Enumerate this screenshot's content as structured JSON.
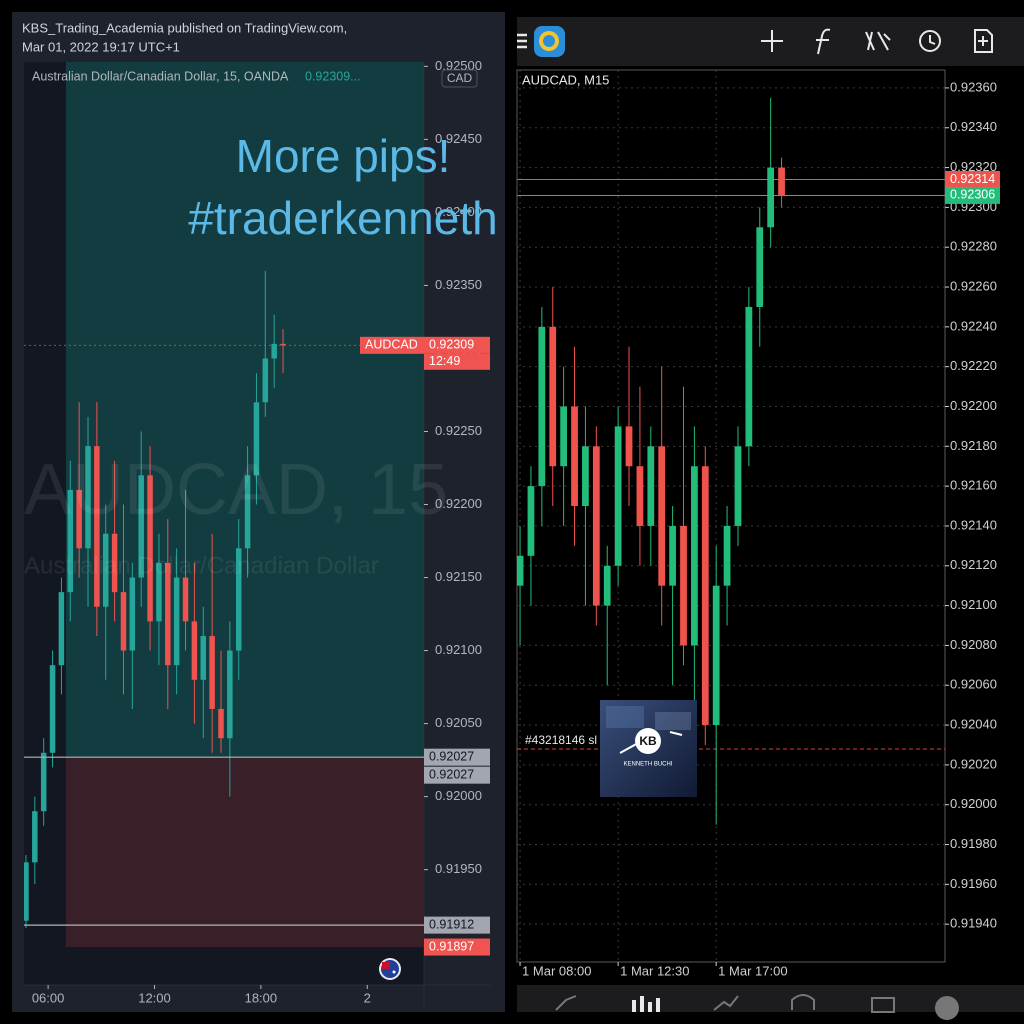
{
  "header": {
    "publisher": "KBS_Trading_Academia published on TradingView.com,",
    "date": "Mar 01, 2022 19:17 UTC+1"
  },
  "overlay": {
    "line1": "More pips!",
    "line2": "#traderkenneth"
  },
  "logo": {
    "initials": "KB",
    "name": "KENNETH BUCHI"
  },
  "chart_data": [
    {
      "type": "candlestick",
      "legend": {
        "symbol": "Australian Dollar/Canadian Dollar, 15, OANDA",
        "price": "0.92309..."
      },
      "currency": "CAD",
      "watermark": {
        "title": "AUDCAD, 15",
        "subtitle": "Australian Dollar/Canadian Dollar"
      },
      "up_color": "#26a69a",
      "down_color": "#ef5350",
      "x": [
        4.75,
        5.25,
        5.75,
        6.25,
        6.75,
        7.25,
        7.75,
        8.25,
        8.75,
        9.25,
        9.75,
        10.25,
        10.75,
        11.25,
        11.75,
        12.25,
        12.75,
        13.25,
        13.75,
        14.25,
        14.75,
        15.25,
        15.75,
        16.25,
        16.75,
        17.25,
        17.75,
        18.25,
        18.75,
        19.25
      ],
      "open": [
        0.91915,
        0.91955,
        0.9199,
        0.9203,
        0.9209,
        0.9214,
        0.9221,
        0.9217,
        0.9224,
        0.9213,
        0.9218,
        0.9214,
        0.921,
        0.9215,
        0.9222,
        0.9212,
        0.9216,
        0.9209,
        0.9215,
        0.9212,
        0.9208,
        0.9211,
        0.9206,
        0.9204,
        0.921,
        0.9217,
        0.9222,
        0.9227,
        0.923,
        0.9231
      ],
      "high": [
        0.9196,
        0.92,
        0.9204,
        0.921,
        0.9215,
        0.9223,
        0.9227,
        0.9226,
        0.9227,
        0.922,
        0.9223,
        0.922,
        0.9216,
        0.9225,
        0.9224,
        0.9218,
        0.9219,
        0.9217,
        0.9221,
        0.9216,
        0.9213,
        0.9218,
        0.921,
        0.9212,
        0.9219,
        0.9224,
        0.9229,
        0.9236,
        0.9233,
        0.9232
      ],
      "low": [
        0.9191,
        0.9194,
        0.9198,
        0.9202,
        0.9207,
        0.9212,
        0.9215,
        0.9213,
        0.9211,
        0.9208,
        0.9212,
        0.9207,
        0.9206,
        0.9213,
        0.921,
        0.9209,
        0.9206,
        0.9207,
        0.921,
        0.9205,
        0.9204,
        0.9203,
        0.9203,
        0.92,
        0.9208,
        0.9215,
        0.922,
        0.9226,
        0.9228,
        0.9229
      ],
      "close": [
        0.91955,
        0.9199,
        0.9203,
        0.9209,
        0.9214,
        0.9221,
        0.9217,
        0.9224,
        0.9213,
        0.9218,
        0.9214,
        0.921,
        0.9215,
        0.9222,
        0.9212,
        0.9216,
        0.9209,
        0.9215,
        0.9212,
        0.9208,
        0.9211,
        0.9206,
        0.9204,
        0.921,
        0.9217,
        0.9222,
        0.9227,
        0.923,
        0.9231,
        0.92309
      ],
      "xlim": [
        4.64,
        27.2
      ],
      "ylim": [
        0.91871,
        0.92503
      ],
      "xticks": [
        {
          "value": 6,
          "label": "06:00"
        },
        {
          "value": 12,
          "label": "12:00"
        },
        {
          "value": 18,
          "label": "18:00"
        },
        {
          "value": 24,
          "label": "2"
        }
      ],
      "yticks": [
        {
          "value": 0.9195,
          "label": "0.91950"
        },
        {
          "value": 0.92,
          "label": "0.92000"
        },
        {
          "value": 0.9205,
          "label": "0.92050"
        },
        {
          "value": 0.921,
          "label": "0.92100"
        },
        {
          "value": 0.9215,
          "label": "0.92150"
        },
        {
          "value": 0.922,
          "label": "0.92200"
        },
        {
          "value": 0.9225,
          "label": "0.92250"
        },
        {
          "value": 0.923,
          "label": "0.92300"
        },
        {
          "value": 0.9235,
          "label": "0.92350"
        },
        {
          "value": 0.924,
          "label": "0.92400"
        },
        {
          "value": 0.9245,
          "label": "0.92450"
        },
        {
          "value": 0.925,
          "label": "0.92500"
        }
      ],
      "grid": false,
      "last": {
        "symbol": "AUDCAD",
        "value": 0.92309,
        "countdown": "12:49",
        "color": "#f05350"
      },
      "position": {
        "start": 7.0,
        "entry": 0.92027,
        "target": 0.9252,
        "stop": 0.91897,
        "profit_color": "#134a4a",
        "loss_color": "#3f2129",
        "stop_color": "#f05350"
      },
      "hlines": [
        0.92027,
        0.91912
      ]
    },
    {
      "type": "candlestick",
      "symbol_label": "AUDCAD, M15",
      "up_color": "#22bd7a",
      "down_color": "#f0534c",
      "x": [
        8,
        8.5,
        9,
        9.5,
        10,
        10.5,
        11,
        11.5,
        12,
        12.5,
        13,
        13.5,
        14,
        14.5,
        15,
        15.5,
        16,
        16.5,
        17,
        17.5,
        18,
        18.5,
        19,
        19.5,
        20
      ],
      "open": [
        0.9211,
        0.92125,
        0.9216,
        0.9224,
        0.9217,
        0.922,
        0.9215,
        0.9218,
        0.921,
        0.9212,
        0.9219,
        0.9217,
        0.9214,
        0.9218,
        0.9211,
        0.9214,
        0.9208,
        0.9217,
        0.9204,
        0.9211,
        0.9214,
        0.9218,
        0.9225,
        0.9229,
        0.9232
      ],
      "high": [
        0.9214,
        0.9217,
        0.9225,
        0.9226,
        0.9222,
        0.9223,
        0.922,
        0.9219,
        0.9213,
        0.922,
        0.9223,
        0.9221,
        0.9219,
        0.9222,
        0.9215,
        0.9221,
        0.9219,
        0.9218,
        0.9213,
        0.9215,
        0.9219,
        0.9226,
        0.923,
        0.92355,
        0.92325
      ],
      "low": [
        0.9208,
        0.921,
        0.9214,
        0.9215,
        0.9214,
        0.9213,
        0.921,
        0.9209,
        0.9206,
        0.9211,
        0.9215,
        0.9212,
        0.9212,
        0.9209,
        0.9206,
        0.9207,
        0.9205,
        0.9203,
        0.9199,
        0.9209,
        0.9213,
        0.9217,
        0.9223,
        0.9228,
        0.923
      ],
      "close": [
        0.92125,
        0.9216,
        0.9224,
        0.9217,
        0.922,
        0.9215,
        0.9218,
        0.921,
        0.9212,
        0.9219,
        0.9217,
        0.9214,
        0.9218,
        0.9211,
        0.9214,
        0.9208,
        0.9217,
        0.9204,
        0.9211,
        0.9214,
        0.9218,
        0.9225,
        0.9229,
        0.9232,
        0.92306
      ],
      "xlim": [
        7.86,
        27.5
      ],
      "ylim": [
        0.91921,
        0.92369
      ],
      "xticks": [
        {
          "value": 8,
          "label": "1 Mar 08:00"
        },
        {
          "value": 12.5,
          "label": "1 Mar 12:30"
        },
        {
          "value": 17,
          "label": "1 Mar 17:00"
        }
      ],
      "yticks": [
        {
          "value": 0.9194,
          "label": "0.91940"
        },
        {
          "value": 0.9196,
          "label": "0.91960"
        },
        {
          "value": 0.9198,
          "label": "0.91980"
        },
        {
          "value": 0.92,
          "label": "0.92000"
        },
        {
          "value": 0.9202,
          "label": "0.92020"
        },
        {
          "value": 0.9204,
          "label": "0.92040"
        },
        {
          "value": 0.9206,
          "label": "0.92060"
        },
        {
          "value": 0.9208,
          "label": "0.92080"
        },
        {
          "value": 0.921,
          "label": "0.92100"
        },
        {
          "value": 0.9212,
          "label": "0.92120"
        },
        {
          "value": 0.9214,
          "label": "0.92140"
        },
        {
          "value": 0.9216,
          "label": "0.92160"
        },
        {
          "value": 0.9218,
          "label": "0.92180"
        },
        {
          "value": 0.922,
          "label": "0.92200"
        },
        {
          "value": 0.9222,
          "label": "0.92220"
        },
        {
          "value": 0.9224,
          "label": "0.92240"
        },
        {
          "value": 0.9226,
          "label": "0.92260"
        },
        {
          "value": 0.9228,
          "label": "0.92280"
        },
        {
          "value": 0.923,
          "label": "0.92300"
        },
        {
          "value": 0.9232,
          "label": "0.92320"
        },
        {
          "value": 0.9234,
          "label": "0.92340"
        },
        {
          "value": 0.9236,
          "label": "0.92360"
        }
      ],
      "grid": true,
      "bid": {
        "value": 0.92314,
        "color": "#f0534c"
      },
      "ask": {
        "value": 0.92306,
        "color": "#22bd7a"
      },
      "order": {
        "label": "#43218146 sl",
        "value": 0.92028,
        "color": "#d9423b"
      }
    }
  ]
}
